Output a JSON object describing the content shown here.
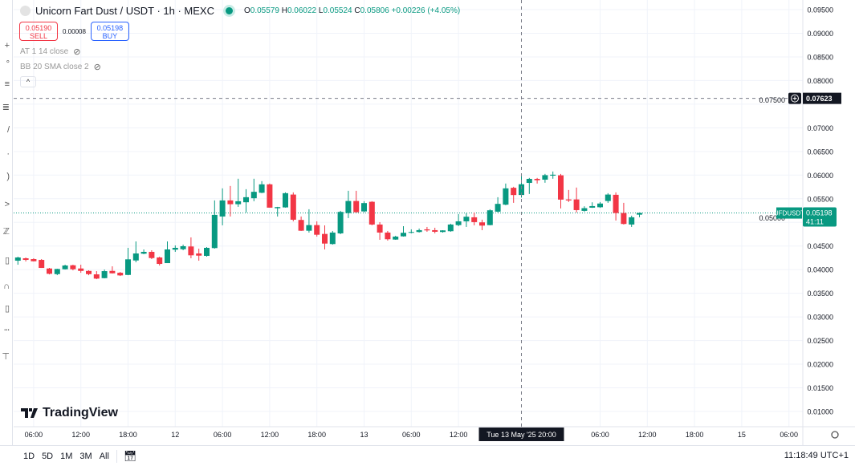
{
  "header": {
    "symbol_title": "Unicorn Fart Dust / USDT · 1h · MEXC",
    "ohlc": {
      "o_label": "O",
      "o": "0.05579",
      "h_label": "H",
      "h": "0.06022",
      "l_label": "L",
      "l": "0.05524",
      "c_label": "C",
      "c": "0.05806",
      "change": "+0.00226 (+4.05%)"
    },
    "market_status_color": "#089981"
  },
  "trade": {
    "sell_price": "0.05190",
    "sell_label": "SELL",
    "spread": "0.00008",
    "buy_price": "0.05198",
    "buy_label": "BUY"
  },
  "indicators": [
    {
      "label": "AT 1 14 close",
      "icon": "eye-off-icon"
    },
    {
      "label": "BB 20 SMA close 2",
      "icon": "eye-off-icon"
    }
  ],
  "collapse_icon": "chevron-up-icon",
  "branding": {
    "logo_text": "TradingView"
  },
  "colors": {
    "up": "#089981",
    "down": "#f23645",
    "grid": "#f0f3fa",
    "crosshair": "#787b86"
  },
  "chart_data": {
    "type": "candlestick",
    "interval": "1h",
    "start": "2025-05-11 04:00",
    "ylim": [
      0.0075,
      0.0965
    ],
    "y_ticks": [
      "0.09500",
      "0.09000",
      "0.08500",
      "0.08000",
      "0.07500",
      "0.07000",
      "0.06500",
      "0.06000",
      "0.05500",
      "0.05000",
      "0.04500",
      "0.04000",
      "0.03500",
      "0.03000",
      "0.02500",
      "0.02000",
      "0.01500",
      "0.01000"
    ],
    "x_ticks": [
      {
        "label": "06:00",
        "time": "2025-05-11 06:00"
      },
      {
        "label": "12:00",
        "time": "2025-05-11 12:00"
      },
      {
        "label": "18:00",
        "time": "2025-05-11 18:00"
      },
      {
        "label": "12",
        "time": "2025-05-12 00:00"
      },
      {
        "label": "06:00",
        "time": "2025-05-12 06:00"
      },
      {
        "label": "12:00",
        "time": "2025-05-12 12:00"
      },
      {
        "label": "18:00",
        "time": "2025-05-12 18:00"
      },
      {
        "label": "13",
        "time": "2025-05-13 00:00"
      },
      {
        "label": "06:00",
        "time": "2025-05-13 06:00"
      },
      {
        "label": "12:00",
        "time": "2025-05-13 12:00"
      },
      {
        "label": "06:00",
        "time": "2025-05-14 06:00"
      },
      {
        "label": "12:00",
        "time": "2025-05-14 12:00"
      },
      {
        "label": "18:00",
        "time": "2025-05-14 18:00"
      },
      {
        "label": "15",
        "time": "2025-05-15 00:00"
      },
      {
        "label": "06:00",
        "time": "2025-05-15 06:00"
      }
    ],
    "grid": true,
    "ohlc": [
      [
        0.04189,
        0.04274,
        0.04104,
        0.04257
      ],
      [
        0.0424,
        0.04257,
        0.04172,
        0.04206
      ],
      [
        0.04223,
        0.0424,
        0.04172,
        0.04177
      ],
      [
        0.04206,
        0.04223,
        0.04036,
        0.04036
      ],
      [
        0.04024,
        0.04036,
        0.039,
        0.03912
      ],
      [
        0.03905,
        0.04019,
        0.03883,
        0.04014
      ],
      [
        0.04008,
        0.04104,
        0.04002,
        0.04087
      ],
      [
        0.04092,
        0.04104,
        0.03985,
        0.04008
      ],
      [
        0.04024,
        0.04104,
        0.03934,
        0.03973
      ],
      [
        0.03973,
        0.03985,
        0.03883,
        0.03905
      ],
      [
        0.039,
        0.03968,
        0.03798,
        0.0381
      ],
      [
        0.0382,
        0.04002,
        0.03815,
        0.03968
      ],
      [
        0.03973,
        0.0407,
        0.03917,
        0.03922
      ],
      [
        0.03934,
        0.03951,
        0.03866,
        0.03878
      ],
      [
        0.03888,
        0.04461,
        0.03883,
        0.04218
      ],
      [
        0.04194,
        0.04597,
        0.04155,
        0.04342
      ],
      [
        0.04337,
        0.04427,
        0.04325,
        0.04376
      ],
      [
        0.04376,
        0.0441,
        0.04223,
        0.04245
      ],
      [
        0.04257,
        0.04274,
        0.04087,
        0.04121
      ],
      [
        0.04138,
        0.04597,
        0.04138,
        0.04427
      ],
      [
        0.04422,
        0.04512,
        0.04376,
        0.04461
      ],
      [
        0.04432,
        0.04529,
        0.0441,
        0.04495
      ],
      [
        0.0449,
        0.04682,
        0.0424,
        0.04303
      ],
      [
        0.04342,
        0.04444,
        0.04189,
        0.04296
      ],
      [
        0.04291,
        0.04478,
        0.04274,
        0.04461
      ],
      [
        0.04456,
        0.05464,
        0.04444,
        0.05158
      ],
      [
        0.05124,
        0.05719,
        0.04937,
        0.05464
      ],
      [
        0.05464,
        0.0577,
        0.05124,
        0.05384
      ],
      [
        0.05384,
        0.05923,
        0.05328,
        0.05447
      ],
      [
        0.05425,
        0.05702,
        0.05209,
        0.05532
      ],
      [
        0.0551,
        0.05923,
        0.05447,
        0.05646
      ],
      [
        0.05626,
        0.05872,
        0.05617,
        0.05804
      ],
      [
        0.05804,
        0.05821,
        0.05311,
        0.05311
      ],
      [
        0.05299,
        0.05328,
        0.05124,
        0.05323
      ],
      [
        0.05316,
        0.05634,
        0.05311,
        0.05617
      ],
      [
        0.05588,
        0.05634,
        0.05022,
        0.05056
      ],
      [
        0.05051,
        0.05124,
        0.04818,
        0.04823
      ],
      [
        0.04823,
        0.05277,
        0.04784,
        0.04942
      ],
      [
        0.04942,
        0.05022,
        0.04699,
        0.04738
      ],
      [
        0.04755,
        0.04937,
        0.04427,
        0.04551
      ],
      [
        0.04541,
        0.04818,
        0.04529,
        0.04784
      ],
      [
        0.04767,
        0.05243,
        0.0475,
        0.05221
      ],
      [
        0.05197,
        0.05668,
        0.0509,
        0.05452
      ],
      [
        0.05452,
        0.05668,
        0.05209,
        0.05214
      ],
      [
        0.05231,
        0.05447,
        0.05214,
        0.05408
      ],
      [
        0.05435,
        0.05447,
        0.04937,
        0.04954
      ],
      [
        0.04954,
        0.05005,
        0.04631,
        0.04784
      ],
      [
        0.04784,
        0.04818,
        0.04614,
        0.04643
      ],
      [
        0.04636,
        0.04716,
        0.04631,
        0.04699
      ],
      [
        0.04704,
        0.0492,
        0.04699,
        0.04779
      ],
      [
        0.04779,
        0.04852,
        0.04767,
        0.04796
      ],
      [
        0.04796,
        0.04869,
        0.04784,
        0.04835
      ],
      [
        0.04852,
        0.04903,
        0.04801,
        0.0483
      ],
      [
        0.04835,
        0.04886,
        0.04767,
        0.04801
      ],
      [
        0.04796,
        0.04835,
        0.04784,
        0.0483
      ],
      [
        0.04813,
        0.04971,
        0.04801,
        0.04954
      ],
      [
        0.04942,
        0.05175,
        0.0492,
        0.05022
      ],
      [
        0.05022,
        0.05192,
        0.04903,
        0.05119
      ],
      [
        0.05107,
        0.05209,
        0.04937,
        0.05005
      ],
      [
        0.05,
        0.05056,
        0.04835,
        0.04931
      ],
      [
        0.04942,
        0.05277,
        0.04937,
        0.05255
      ],
      [
        0.05226,
        0.05532,
        0.05209,
        0.05391
      ],
      [
        0.05374,
        0.05821,
        0.05362,
        0.05719
      ],
      [
        0.05731,
        0.05753,
        0.05413,
        0.05578
      ],
      [
        0.05579,
        0.06022,
        0.05524,
        0.05806
      ],
      [
        0.05835,
        0.0594,
        0.056,
        0.0592
      ],
      [
        0.0592,
        0.0594,
        0.05821,
        0.05891
      ],
      [
        0.05903,
        0.06025,
        0.05838,
        0.05998
      ],
      [
        0.05988,
        0.06076,
        0.05923,
        0.06008
      ],
      [
        0.05995,
        0.06025,
        0.05294,
        0.05481
      ],
      [
        0.05485,
        0.05685,
        0.0543,
        0.05464
      ],
      [
        0.05485,
        0.05736,
        0.05209,
        0.05259
      ],
      [
        0.05243,
        0.0534,
        0.05226,
        0.053
      ],
      [
        0.0531,
        0.05424,
        0.05305,
        0.05344
      ],
      [
        0.0532,
        0.0543,
        0.05308,
        0.05398
      ],
      [
        0.05452,
        0.05617,
        0.05413,
        0.05588
      ],
      [
        0.05583,
        0.05634,
        0.05039,
        0.05197
      ],
      [
        0.05197,
        0.05413,
        0.04954,
        0.04966
      ],
      [
        0.04954,
        0.05141,
        0.04903,
        0.05107
      ],
      [
        0.05163,
        0.05209,
        0.05107,
        0.05198
      ]
    ],
    "last_price": {
      "symbol": "UFDUSDT",
      "value": "0.05198",
      "countdown": "41:11"
    },
    "crosshair": {
      "price": "0.07623",
      "time_label": "Tue 13 May '25  20:00",
      "time": "2025-05-13 20:00"
    }
  },
  "bottom_bar": {
    "ranges": [
      "1D",
      "5D",
      "1M",
      "3M",
      "All"
    ],
    "date_range_icon": "calendar-goto-icon",
    "clock": "11:18:49 UTC+1"
  },
  "axis_settings_icon": "gear-icon"
}
